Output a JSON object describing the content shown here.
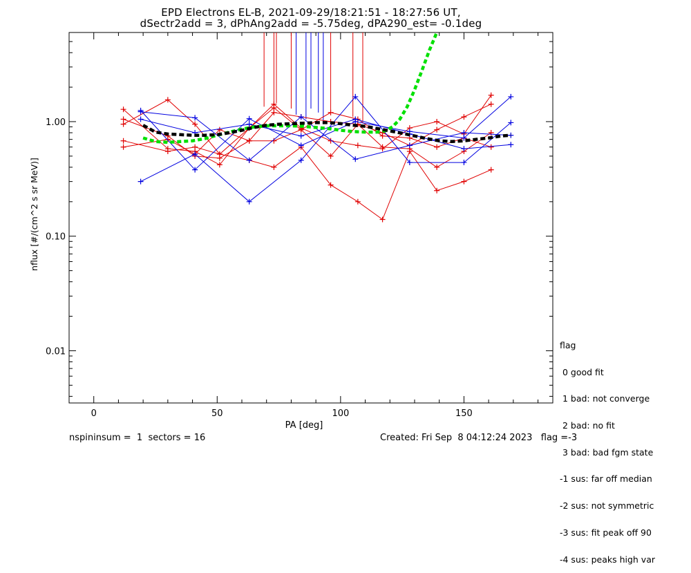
{
  "chart_data": {
    "type": "scatter",
    "title_line1": "EPD Electrons EL-B, 2021-09-29/18:21:51 - 18:27:56 UT,",
    "title_line2": "dSectr2add = 3, dPhAng2add = -5.75deg, dPA290_est=  -0.1deg",
    "xlabel": "PA [deg]",
    "ylabel": "nflux [#/(cm^2 s sr MeV)]",
    "xlim": [
      -10,
      186
    ],
    "ylim_log": [
      0.0035,
      6.0
    ],
    "y_scale": "log",
    "x_ticks": [
      0,
      50,
      100,
      150
    ],
    "x_tick_labels": [
      "0",
      "50",
      "100",
      "150"
    ],
    "y_ticks": [
      0.01,
      0.1,
      1.0
    ],
    "y_tick_labels": [
      "0.01",
      "0.10",
      "1.00"
    ],
    "colors": {
      "red": "#e00000",
      "blue": "#0000e0",
      "green": "#00e000",
      "black": "#000000"
    },
    "series": [
      {
        "color": "red",
        "x": [
          12,
          30,
          41,
          51,
          63,
          73,
          84,
          96,
          107,
          117,
          128,
          139,
          150,
          161
        ],
        "y": [
          1.28,
          0.58,
          0.55,
          0.42,
          0.88,
          1.32,
          0.85,
          0.5,
          0.95,
          0.6,
          0.58,
          0.4,
          0.55,
          0.8
        ]
      },
      {
        "color": "red",
        "x": [
          12,
          30,
          41,
          51,
          63,
          73,
          84,
          96,
          107,
          117,
          128,
          139,
          150,
          161
        ],
        "y": [
          0.95,
          1.55,
          0.95,
          0.52,
          0.88,
          1.42,
          0.88,
          0.68,
          0.62,
          0.58,
          0.88,
          1.0,
          0.78,
          1.7
        ]
      },
      {
        "color": "red",
        "x": [
          12,
          30,
          41,
          51,
          63,
          73,
          84,
          96,
          107,
          117,
          128,
          139,
          150,
          161
        ],
        "y": [
          0.68,
          0.55,
          0.6,
          0.52,
          0.46,
          0.4,
          0.6,
          0.28,
          0.2,
          0.14,
          0.55,
          0.25,
          0.3,
          0.38
        ]
      },
      {
        "color": "red",
        "x": [
          12,
          30,
          41,
          51,
          63,
          73,
          84,
          96,
          107,
          117,
          128,
          139,
          150,
          161
        ],
        "y": [
          0.6,
          0.7,
          0.52,
          0.85,
          0.68,
          0.68,
          0.85,
          1.2,
          1.05,
          0.75,
          0.72,
          0.6,
          0.72,
          0.6
        ]
      },
      {
        "color": "red",
        "x": [
          12,
          30,
          41,
          51,
          63,
          73,
          84,
          96,
          107,
          117,
          128,
          139,
          150,
          161
        ],
        "y": [
          1.05,
          0.75,
          0.5,
          0.48,
          0.68,
          1.2,
          1.1,
          1.0,
          0.95,
          0.8,
          0.62,
          0.85,
          1.1,
          1.42
        ]
      },
      {
        "color": "blue",
        "x": [
          19,
          41,
          63,
          84,
          106,
          128,
          150,
          169
        ],
        "y": [
          0.3,
          0.52,
          0.2,
          0.46,
          1.65,
          0.44,
          0.44,
          0.98
        ]
      },
      {
        "color": "blue",
        "x": [
          19,
          41,
          63,
          84,
          106,
          128,
          150,
          169
        ],
        "y": [
          1.25,
          0.38,
          1.06,
          0.62,
          1.0,
          0.82,
          0.72,
          1.65
        ]
      },
      {
        "color": "blue",
        "x": [
          19,
          41,
          63,
          84,
          106,
          128,
          150,
          169
        ],
        "y": [
          1.22,
          1.08,
          0.46,
          1.1,
          0.47,
          0.62,
          0.8,
          0.76
        ]
      },
      {
        "color": "blue",
        "x": [
          19,
          41,
          63,
          84,
          106,
          128,
          150,
          169
        ],
        "y": [
          1.05,
          0.8,
          0.95,
          0.75,
          1.05,
          0.78,
          0.58,
          0.63
        ]
      }
    ],
    "red_vlines_x": [
      69,
      73,
      74,
      80,
      96,
      105,
      109
    ],
    "blue_vlines_x": [
      82,
      86,
      88,
      91,
      93
    ],
    "vline_bottom_y": [
      1.35,
      1.2,
      1.45,
      1.3,
      1.25,
      1.1,
      1.0,
      1.15,
      1.05,
      1.3,
      1.2,
      0.95
    ],
    "green_fit": {
      "x": [
        20,
        25,
        30,
        35,
        40,
        45,
        50,
        55,
        60,
        65,
        70,
        75,
        80,
        85,
        90,
        95,
        100,
        105,
        110,
        115,
        118,
        121,
        124,
        127,
        130,
        133,
        136,
        139
      ],
      "y": [
        0.72,
        0.67,
        0.66,
        0.67,
        0.68,
        0.71,
        0.76,
        0.81,
        0.86,
        0.9,
        0.92,
        0.92,
        0.92,
        0.91,
        0.89,
        0.87,
        0.84,
        0.82,
        0.81,
        0.81,
        0.83,
        0.9,
        1.05,
        1.35,
        1.9,
        2.8,
        4.2,
        6.0
      ]
    },
    "black_fit": {
      "x": [
        20,
        25,
        30,
        35,
        40,
        45,
        50,
        55,
        60,
        65,
        70,
        75,
        80,
        85,
        90,
        95,
        100,
        105,
        110,
        115,
        120,
        125,
        130,
        135,
        140,
        145,
        150,
        155,
        160,
        165,
        169
      ],
      "y": [
        0.93,
        0.81,
        0.78,
        0.77,
        0.76,
        0.76,
        0.77,
        0.8,
        0.84,
        0.89,
        0.93,
        0.95,
        0.96,
        0.97,
        0.98,
        0.98,
        0.96,
        0.93,
        0.91,
        0.87,
        0.83,
        0.79,
        0.75,
        0.71,
        0.68,
        0.67,
        0.68,
        0.7,
        0.72,
        0.75,
        0.76
      ]
    }
  },
  "legend": {
    "title": "flag",
    "items": [
      " 0 good fit",
      " 1 bad: not converge",
      " 2 bad: no fit",
      " 3 bad: bad fgm state",
      "-1 sus: far off median",
      "-2 sus: not symmetric",
      "-3 sus: fit peak off 90",
      "-4 sus: peaks high var"
    ]
  },
  "footer": {
    "left": "nspininsum =  1  sectors = 16",
    "right": "Created: Fri Sep  8 04:12:24 2023   flag =-3"
  }
}
